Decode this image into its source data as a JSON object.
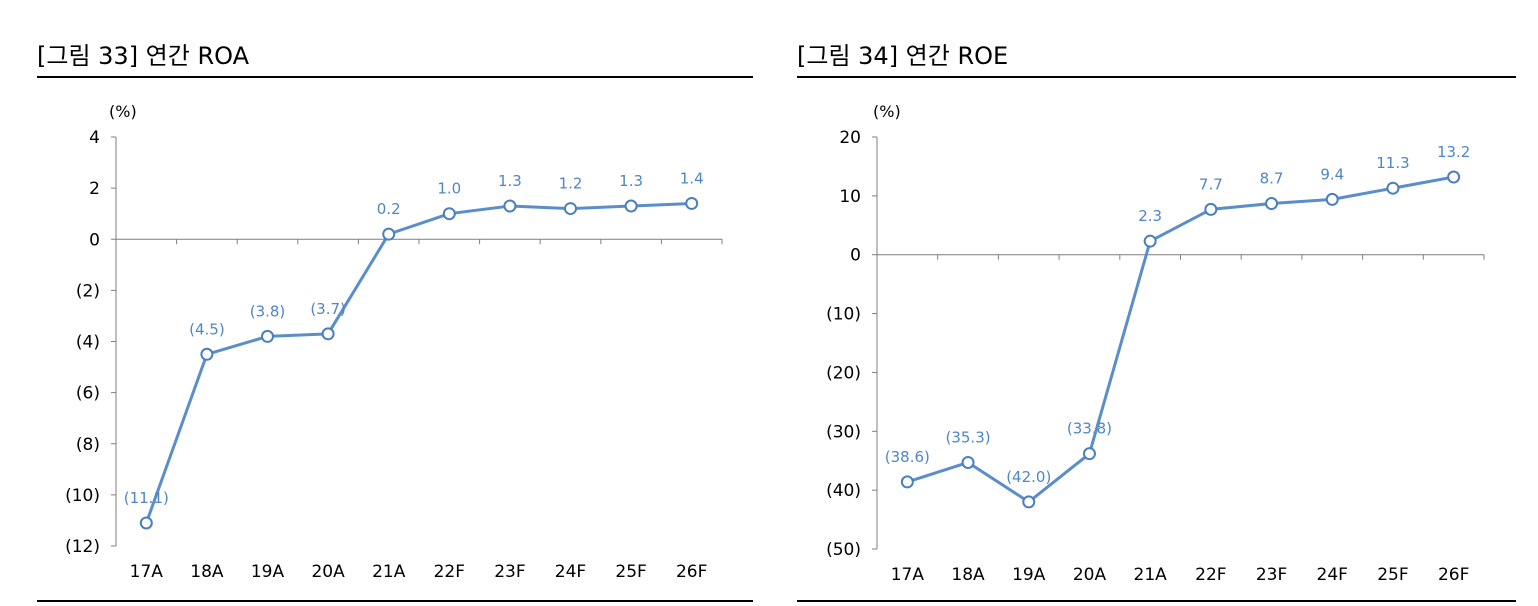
{
  "figures": [
    {
      "title": "[그림 33] 연간 ROA",
      "unit": "(%)",
      "chart_data": {
        "type": "line",
        "title": "[그림 33] 연간 ROA",
        "xlabel": "",
        "ylabel": "(%)",
        "categories": [
          "17A",
          "18A",
          "19A",
          "20A",
          "21A",
          "22F",
          "23F",
          "24F",
          "25F",
          "26F"
        ],
        "series": [
          {
            "values": [
              -11.1,
              -4.5,
              -3.8,
              -3.7,
              0.2,
              1.0,
              1.3,
              1.2,
              1.3,
              1.4
            ],
            "labels": [
              "(11.1)",
              "(4.5)",
              "(3.8)",
              "(3.7)",
              "0.2",
              "1.0",
              "1.3",
              "1.2",
              "1.3",
              "1.4"
            ]
          }
        ],
        "ylim": [
          -12,
          4
        ],
        "yticks": [
          4,
          2,
          0,
          -2,
          -4,
          -6,
          -8,
          -10,
          -12
        ],
        "ytick_labels": [
          "4",
          "2",
          "0",
          "(2)",
          "(4)",
          "(6)",
          "(8)",
          "(10)",
          "(12)"
        ],
        "grid": false,
        "line_color": "#5b8ec9"
      }
    },
    {
      "title": "[그림 34] 연간 ROE",
      "unit": "(%)",
      "chart_data": {
        "type": "line",
        "title": "[그림 34] 연간 ROE",
        "xlabel": "",
        "ylabel": "(%)",
        "categories": [
          "17A",
          "18A",
          "19A",
          "20A",
          "21A",
          "22F",
          "23F",
          "24F",
          "25F",
          "26F"
        ],
        "series": [
          {
            "values": [
              -38.6,
              -35.3,
              -42.0,
              -33.8,
              2.3,
              7.7,
              8.7,
              9.4,
              11.3,
              13.2
            ],
            "labels": [
              "(38.6)",
              "(35.3)",
              "(42.0)",
              "(33.8)",
              "2.3",
              "7.7",
              "8.7",
              "9.4",
              "11.3",
              "13.2"
            ]
          }
        ],
        "ylim": [
          -50,
          20
        ],
        "yticks": [
          20,
          10,
          0,
          -10,
          -20,
          -30,
          -40,
          -50
        ],
        "ytick_labels": [
          "20",
          "10",
          "0",
          "(10)",
          "(20)",
          "(30)",
          "(40)",
          "(50)"
        ],
        "grid": false,
        "line_color": "#5b8ec9"
      }
    }
  ]
}
